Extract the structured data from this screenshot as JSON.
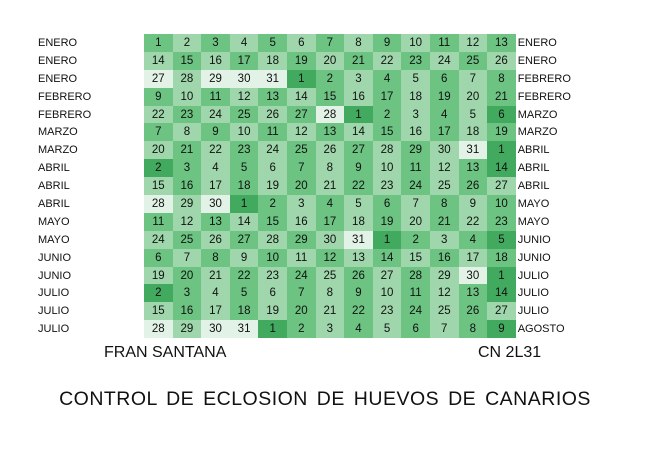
{
  "table": {
    "rows": [
      {
        "left": "ENERO",
        "right": "ENERO",
        "days": [
          "1",
          "2",
          "3",
          "4",
          "5",
          "6",
          "7",
          "8",
          "9",
          "10",
          "11",
          "12",
          "13"
        ],
        "shades": [
          2,
          1,
          2,
          1,
          2,
          1,
          2,
          1,
          2,
          1,
          2,
          1,
          2
        ]
      },
      {
        "left": "ENERO",
        "right": "ENERO",
        "days": [
          "14",
          "15",
          "16",
          "17",
          "18",
          "19",
          "20",
          "21",
          "22",
          "23",
          "24",
          "25",
          "26"
        ],
        "shades": [
          1,
          2,
          1,
          2,
          1,
          2,
          1,
          2,
          1,
          2,
          1,
          2,
          1
        ]
      },
      {
        "left": "ENERO",
        "right": "FEBRERO",
        "days": [
          "27",
          "28",
          "29",
          "30",
          "31",
          "1",
          "2",
          "3",
          "4",
          "5",
          "6",
          "7",
          "8"
        ],
        "shades": [
          0,
          1,
          0,
          0,
          0,
          3,
          2,
          1,
          2,
          1,
          2,
          1,
          2
        ]
      },
      {
        "left": "FEBRERO",
        "right": "FEBRERO",
        "days": [
          "9",
          "10",
          "11",
          "12",
          "13",
          "14",
          "15",
          "16",
          "17",
          "18",
          "19",
          "20",
          "21"
        ],
        "shades": [
          2,
          1,
          2,
          1,
          2,
          1,
          2,
          1,
          2,
          1,
          2,
          1,
          2
        ]
      },
      {
        "left": "FEBRERO",
        "right": "MARZO",
        "days": [
          "22",
          "23",
          "24",
          "25",
          "26",
          "27",
          "28",
          "1",
          "2",
          "3",
          "4",
          "5",
          "6"
        ],
        "shades": [
          1,
          2,
          1,
          2,
          1,
          2,
          0,
          3,
          2,
          1,
          2,
          1,
          3
        ]
      },
      {
        "left": "MARZO",
        "right": "MARZO",
        "days": [
          "7",
          "8",
          "9",
          "10",
          "11",
          "12",
          "13",
          "14",
          "15",
          "16",
          "17",
          "18",
          "19"
        ],
        "shades": [
          2,
          1,
          2,
          1,
          2,
          1,
          2,
          1,
          2,
          1,
          2,
          1,
          2
        ]
      },
      {
        "left": "MARZO",
        "right": "ABRIL",
        "days": [
          "20",
          "21",
          "22",
          "23",
          "24",
          "25",
          "26",
          "27",
          "28",
          "29",
          "30",
          "31",
          "1"
        ],
        "shades": [
          1,
          2,
          1,
          2,
          1,
          2,
          1,
          2,
          1,
          2,
          1,
          0,
          3
        ]
      },
      {
        "left": "ABRIL",
        "right": "ABRIL",
        "days": [
          "2",
          "3",
          "4",
          "5",
          "6",
          "7",
          "8",
          "9",
          "10",
          "11",
          "12",
          "13",
          "14"
        ],
        "shades": [
          3,
          2,
          1,
          2,
          1,
          2,
          1,
          2,
          1,
          2,
          1,
          2,
          3
        ]
      },
      {
        "left": "ABRIL",
        "right": "ABRIL",
        "days": [
          "15",
          "16",
          "17",
          "18",
          "19",
          "20",
          "21",
          "22",
          "23",
          "24",
          "25",
          "26",
          "27"
        ],
        "shades": [
          1,
          2,
          1,
          2,
          1,
          2,
          1,
          2,
          1,
          2,
          1,
          2,
          1
        ]
      },
      {
        "left": "ABRIL",
        "right": "MAYO",
        "days": [
          "28",
          "29",
          "30",
          "1",
          "2",
          "3",
          "4",
          "5",
          "6",
          "7",
          "8",
          "9",
          "10"
        ],
        "shades": [
          0,
          1,
          0,
          3,
          2,
          1,
          2,
          1,
          2,
          1,
          2,
          1,
          2
        ]
      },
      {
        "left": "MAYO",
        "right": "MAYO",
        "days": [
          "11",
          "12",
          "13",
          "14",
          "15",
          "16",
          "17",
          "18",
          "19",
          "20",
          "21",
          "22",
          "23"
        ],
        "shades": [
          2,
          1,
          2,
          1,
          2,
          1,
          2,
          1,
          2,
          1,
          2,
          1,
          2
        ]
      },
      {
        "left": "MAYO",
        "right": "JUNIO",
        "days": [
          "24",
          "25",
          "26",
          "27",
          "28",
          "29",
          "30",
          "31",
          "1",
          "2",
          "3",
          "4",
          "5"
        ],
        "shades": [
          1,
          2,
          1,
          2,
          1,
          2,
          1,
          0,
          3,
          2,
          1,
          2,
          3
        ]
      },
      {
        "left": "JUNIO",
        "right": "JUNIO",
        "days": [
          "6",
          "7",
          "8",
          "9",
          "10",
          "11",
          "12",
          "13",
          "14",
          "15",
          "16",
          "17",
          "18"
        ],
        "shades": [
          2,
          1,
          2,
          1,
          2,
          1,
          2,
          1,
          2,
          1,
          2,
          1,
          2
        ]
      },
      {
        "left": "JUNIO",
        "right": "JULIO",
        "days": [
          "19",
          "20",
          "21",
          "22",
          "23",
          "24",
          "25",
          "26",
          "27",
          "28",
          "29",
          "30",
          "1"
        ],
        "shades": [
          1,
          2,
          1,
          2,
          1,
          2,
          1,
          2,
          1,
          2,
          1,
          0,
          3
        ]
      },
      {
        "left": "JULIO",
        "right": "JULIO",
        "days": [
          "2",
          "3",
          "4",
          "5",
          "6",
          "7",
          "8",
          "9",
          "10",
          "11",
          "12",
          "13",
          "14"
        ],
        "shades": [
          3,
          2,
          1,
          2,
          1,
          2,
          1,
          2,
          1,
          2,
          1,
          2,
          3
        ]
      },
      {
        "left": "JULIO",
        "right": "JULIO",
        "days": [
          "15",
          "16",
          "17",
          "18",
          "19",
          "20",
          "21",
          "22",
          "23",
          "24",
          "25",
          "26",
          "27"
        ],
        "shades": [
          1,
          2,
          1,
          2,
          1,
          2,
          1,
          2,
          1,
          2,
          1,
          2,
          1
        ]
      },
      {
        "left": "JULIO",
        "right": "AGOSTO",
        "days": [
          "28",
          "29",
          "30",
          "31",
          "1",
          "2",
          "3",
          "4",
          "5",
          "6",
          "7",
          "8",
          "9"
        ],
        "shades": [
          0,
          1,
          0,
          0,
          3,
          2,
          1,
          2,
          1,
          2,
          1,
          2,
          3
        ]
      }
    ]
  },
  "footer": {
    "author": "FRAN SANTANA",
    "code": "CN 2L31"
  },
  "title": "CONTROL  DE  ECLOSION DE  HUEVOS DE CANARIOS",
  "colors": {
    "shade_0": "#e3f2e6",
    "shade_1": "#9fd6ab",
    "shade_2": "#6cc382",
    "shade_3": "#41aa5f"
  }
}
